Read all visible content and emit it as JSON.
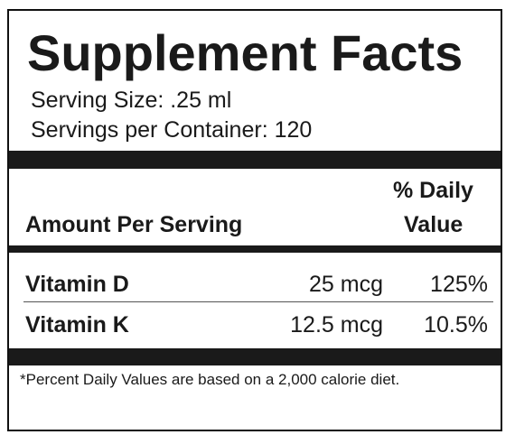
{
  "title": "Supplement Facts",
  "serving_size": "Serving Size: .25 ml",
  "servings_per_container": "Servings per Container: 120",
  "header": {
    "amount_per_serving": "Amount Per Serving",
    "daily_value_line1": "% Daily",
    "daily_value_line2": "Value"
  },
  "nutrients": [
    {
      "name": "Vitamin D",
      "amount": "25 mcg",
      "daily_value": "125%"
    },
    {
      "name": "Vitamin K",
      "amount": "12.5 mcg",
      "daily_value": "10.5%"
    }
  ],
  "footnote": "*Percent Daily Values are based on a 2,000 calorie diet.",
  "colors": {
    "text": "#1a1a1a",
    "bars": "#1a1a1a",
    "background": "#ffffff"
  }
}
